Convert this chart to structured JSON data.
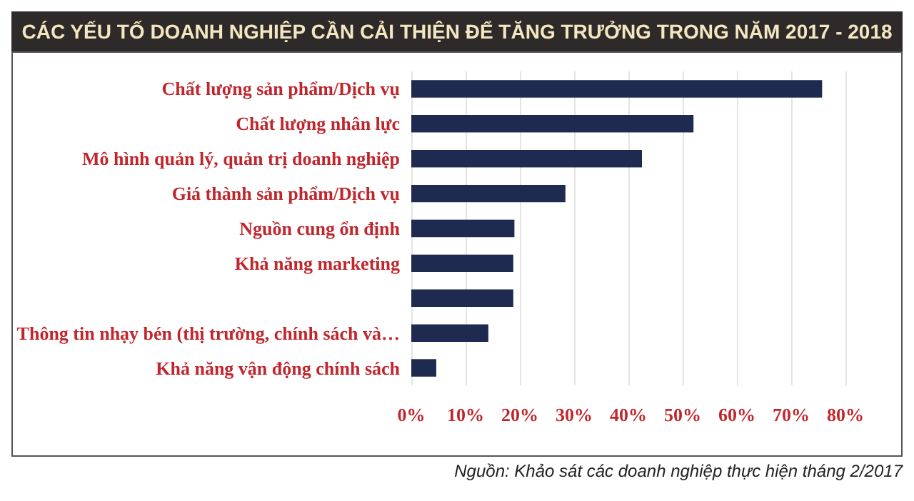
{
  "chart_data": {
    "type": "bar",
    "orientation": "horizontal",
    "title": "CÁC YẾU TỐ DOANH NGHIỆP CẦN CẢI THIỆN ĐỂ TĂNG TRƯỞNG TRONG NĂM 2017 - 2018",
    "categories": [
      "Chất lượng sản phẩm/Dịch vụ",
      "Chất lượng nhân lực",
      "Mô hình quản lý, quản trị doanh nghiệp",
      "Giá thành sản phẩm/Dịch vụ",
      "Nguồn cung ổn định",
      "Khả năng marketing",
      null,
      "Thông tin nhạy bén (thị trường, chính sách và…",
      "Khả năng vận động chính sách"
    ],
    "values": [
      75.7,
      52,
      42.5,
      28.4,
      19,
      18.8,
      18.8,
      14.2,
      4.6
    ],
    "color": "#1f2a50",
    "xlim": [
      0,
      80
    ],
    "xticks": [
      {
        "value": 0,
        "label": "0%"
      },
      {
        "value": 10,
        "label": "10%"
      },
      {
        "value": 20,
        "label": "20%"
      },
      {
        "value": 30,
        "label": "30%"
      },
      {
        "value": 40,
        "label": "40%"
      },
      {
        "value": 50,
        "label": "50%"
      },
      {
        "value": 60,
        "label": "60%"
      },
      {
        "value": 70,
        "label": "70%"
      },
      {
        "value": 80,
        "label": "80%"
      }
    ],
    "grid": "x",
    "annotations": [
      "Nguồn: Khảo sát các doanh nghiệp thực hiện tháng 2/2017"
    ]
  }
}
